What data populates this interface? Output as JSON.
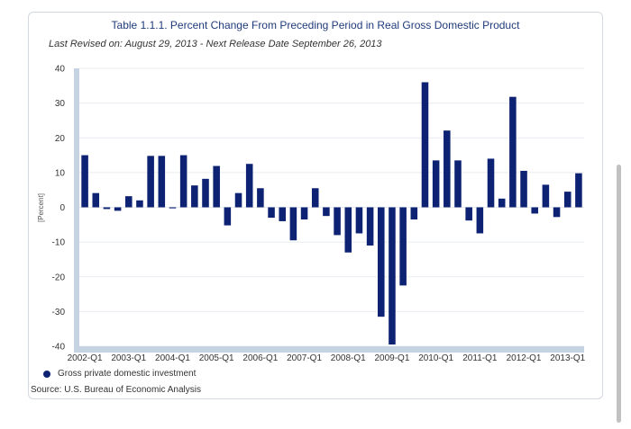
{
  "chart_data": {
    "type": "bar",
    "title": "Table 1.1.1. Percent Change From Preceding Period in Real Gross Domestic Product",
    "subtitle": "Last Revised on: August 29, 2013 - Next Release Date September 26, 2013",
    "ylabel": "[Percent]",
    "xlabel": "",
    "ylim": [
      -40,
      40
    ],
    "yticks": [
      40,
      30,
      20,
      10,
      0,
      -10,
      -20,
      -30,
      -40
    ],
    "tick_labels": [
      "2002-Q1",
      "2003-Q1",
      "2004-Q1",
      "2005-Q1",
      "2006-Q1",
      "2007-Q1",
      "2008-Q1",
      "2009-Q1",
      "2010-Q1",
      "2011-Q1",
      "2012-Q1",
      "2013-Q1"
    ],
    "categories": [
      "2002-Q1",
      "2002-Q2",
      "2002-Q3",
      "2002-Q4",
      "2003-Q1",
      "2003-Q2",
      "2003-Q3",
      "2003-Q4",
      "2004-Q1",
      "2004-Q2",
      "2004-Q3",
      "2004-Q4",
      "2005-Q1",
      "2005-Q2",
      "2005-Q3",
      "2005-Q4",
      "2006-Q1",
      "2006-Q2",
      "2006-Q3",
      "2006-Q4",
      "2007-Q1",
      "2007-Q2",
      "2007-Q3",
      "2007-Q4",
      "2008-Q1",
      "2008-Q2",
      "2008-Q3",
      "2008-Q4",
      "2009-Q1",
      "2009-Q2",
      "2009-Q3",
      "2009-Q4",
      "2010-Q1",
      "2010-Q2",
      "2010-Q3",
      "2010-Q4",
      "2011-Q1",
      "2011-Q2",
      "2011-Q3",
      "2011-Q4",
      "2012-Q1",
      "2012-Q2",
      "2012-Q3",
      "2012-Q4",
      "2013-Q1",
      "2013-Q2"
    ],
    "series": [
      {
        "name": "Gross private domestic investment",
        "color": "#0d2272",
        "values": [
          15.0,
          4.1,
          -0.5,
          -1.0,
          3.2,
          2.0,
          14.8,
          14.8,
          -0.3,
          15.0,
          6.3,
          8.2,
          11.9,
          -5.2,
          4.1,
          12.5,
          5.5,
          -3.0,
          -4.0,
          -9.5,
          -3.5,
          5.5,
          -2.5,
          -8.0,
          -13.0,
          -7.5,
          -11.0,
          -31.5,
          -39.5,
          -22.5,
          -3.5,
          36.0,
          13.5,
          22.1,
          13.5,
          -3.8,
          -7.5,
          14.0,
          2.5,
          31.8,
          10.5,
          -1.8,
          6.5,
          -2.8,
          4.5,
          9.8
        ]
      }
    ],
    "legend": "bottom-left",
    "grid": true
  },
  "footer": {
    "source": "Source: U.S. Bureau of Economic Analysis"
  }
}
